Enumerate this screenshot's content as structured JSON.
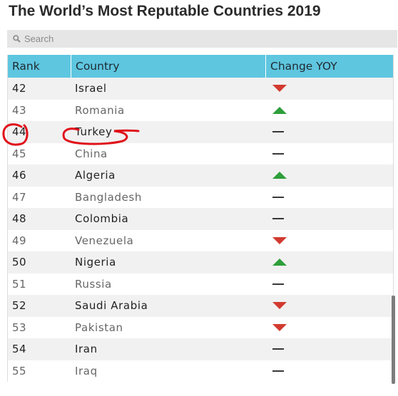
{
  "title": "The World’s Most Reputable Countries 2019",
  "search": {
    "placeholder": "Search"
  },
  "table": {
    "headers": {
      "rank": "Rank",
      "country": "Country",
      "change": "Change YOY"
    },
    "rows": [
      {
        "rank": "42",
        "country": "Israel",
        "change": "down"
      },
      {
        "rank": "43",
        "country": "Romania",
        "change": "up"
      },
      {
        "rank": "44",
        "country": "Turkey",
        "change": "same"
      },
      {
        "rank": "45",
        "country": "China",
        "change": "same"
      },
      {
        "rank": "46",
        "country": "Algeria",
        "change": "up"
      },
      {
        "rank": "47",
        "country": "Bangladesh",
        "change": "same"
      },
      {
        "rank": "48",
        "country": "Colombia",
        "change": "same"
      },
      {
        "rank": "49",
        "country": "Venezuela",
        "change": "down"
      },
      {
        "rank": "50",
        "country": "Nigeria",
        "change": "up"
      },
      {
        "rank": "51",
        "country": "Russia",
        "change": "same"
      },
      {
        "rank": "52",
        "country": "Saudi Arabia",
        "change": "down"
      },
      {
        "rank": "53",
        "country": "Pakistan",
        "change": "down"
      },
      {
        "rank": "54",
        "country": "Iran",
        "change": "same"
      },
      {
        "rank": "55",
        "country": "Iraq",
        "change": "same"
      }
    ]
  },
  "colors": {
    "header_bg": "#5fc6e0",
    "up": "#2e9e3a",
    "down": "#d23a2f",
    "same": "#222222",
    "annotation": "#e0101a"
  },
  "icons": {
    "search": "magnifier-icon",
    "up": "triangle-up-icon",
    "down": "triangle-down-icon",
    "same": "dash-icon"
  }
}
